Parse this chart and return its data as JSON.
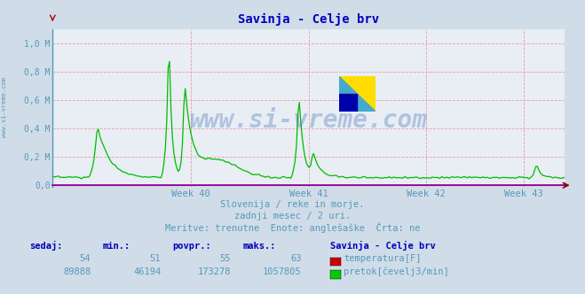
{
  "title": "Savinja - Celje brv",
  "title_color": "#0000bb",
  "bg_color": "#d0dce8",
  "plot_bg_color": "#e8eef4",
  "grid_color": "#e8a0a0",
  "x_label_color": "#5599bb",
  "y_label_color": "#5599bb",
  "axis_color": "#9900aa",
  "week_labels": [
    "Week 40",
    "Week 41",
    "Week 42",
    "Week 43"
  ],
  "flow_line_color": "#00bb00",
  "temp_line_color": "#cc0000",
  "watermark": "www.si-vreme.com",
  "watermark_color": "#2255aa",
  "subtitle1": "Slovenija / reke in morje.",
  "subtitle2": "zadnji mesec / 2 uri.",
  "subtitle3": "Meritve: trenutne  Enote: anglešaške  Črta: ne",
  "subtitle_color": "#5599bb",
  "table_header_color": "#0000bb",
  "table_value_color": "#5599bb",
  "table_headers": [
    "sedaj:",
    "min.:",
    "povpr.:",
    "maks.:"
  ],
  "temp_values": [
    "54",
    "51",
    "55",
    "63"
  ],
  "flow_values": [
    "89888",
    "46194",
    "173278",
    "1057805"
  ],
  "legend_title": "Savinja - Celje brv",
  "legend_temp": "temperatura[F]",
  "legend_flow": "pretok[čevelj3/min]",
  "vline_color": "#ffaaaa",
  "left_spine_color": "#5599bb",
  "bottom_line_color": "#8800aa",
  "arrow_color": "#880000"
}
